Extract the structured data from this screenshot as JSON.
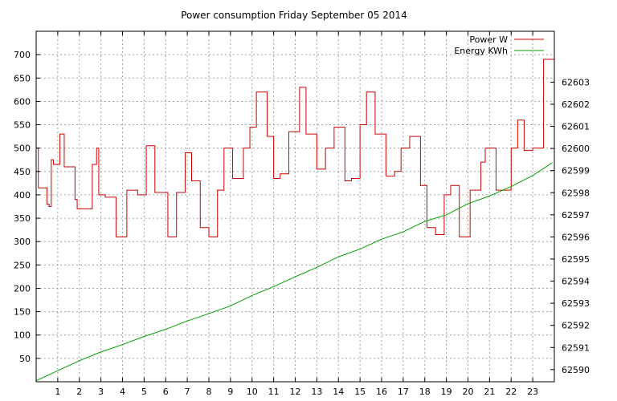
{
  "chart_data": {
    "type": "line",
    "title": "Power consumption Friday September 05 2014",
    "xlabel": "",
    "ylabel": "",
    "x_ticks": [
      1,
      2,
      3,
      4,
      5,
      6,
      7,
      8,
      9,
      10,
      11,
      12,
      13,
      14,
      15,
      16,
      17,
      18,
      19,
      20,
      21,
      22,
      23
    ],
    "xlim": [
      0,
      24
    ],
    "ylim": [
      0,
      750
    ],
    "y_ticks": [
      50,
      100,
      150,
      200,
      250,
      300,
      350,
      400,
      450,
      500,
      550,
      600,
      650,
      700
    ],
    "y2lim": [
      62589.45,
      62605.3
    ],
    "y2_ticks": [
      62590,
      62591,
      62592,
      62593,
      62594,
      62595,
      62596,
      62597,
      62598,
      62599,
      62600,
      62601,
      62602,
      62603
    ],
    "grid": true,
    "legend_position": "top-right",
    "series": [
      {
        "name": "Power W",
        "axis": "left",
        "color": "#cc0000",
        "step": true,
        "x": [
          0,
          0.1,
          0.5,
          0.6,
          0.7,
          0.8,
          1.1,
          1.3,
          1.8,
          1.9,
          2.0,
          2.6,
          2.8,
          2.9,
          3.2,
          3.7,
          4.2,
          4.7,
          5.1,
          5.5,
          6.1,
          6.5,
          6.9,
          7.2,
          7.6,
          8.0,
          8.4,
          8.7,
          9.1,
          9.6,
          9.9,
          10.2,
          10.7,
          11.0,
          11.3,
          11.7,
          12.2,
          12.5,
          13.0,
          13.4,
          13.8,
          14.3,
          14.6,
          15.0,
          15.3,
          15.7,
          16.2,
          16.6,
          16.9,
          17.3,
          17.8,
          18.1,
          18.5,
          18.9,
          19.2,
          19.6,
          20.1,
          20.6,
          20.8,
          21.3,
          21.6,
          22.0,
          22.3,
          22.6,
          23.0,
          23.5,
          24.0
        ],
        "y": [
          500,
          415,
          380,
          375,
          475,
          465,
          530,
          460,
          390,
          370,
          370,
          465,
          500,
          400,
          395,
          310,
          410,
          400,
          505,
          405,
          310,
          405,
          490,
          430,
          330,
          310,
          410,
          500,
          435,
          500,
          545,
          620,
          525,
          435,
          445,
          535,
          630,
          530,
          455,
          500,
          545,
          430,
          435,
          550,
          620,
          530,
          440,
          450,
          500,
          525,
          420,
          330,
          315,
          400,
          420,
          310,
          410,
          470,
          500,
          410,
          410,
          500,
          560,
          495,
          500,
          690,
          690
        ]
      },
      {
        "name": "Energy KWh",
        "axis": "right",
        "color": "#00a000",
        "step": false,
        "x": [
          0,
          1,
          2,
          3,
          4,
          5,
          6,
          7,
          8,
          9,
          10,
          11,
          12,
          13,
          14,
          15,
          16,
          17,
          18,
          19,
          20,
          21,
          22,
          23,
          23.9
        ],
        "y": [
          62589.5,
          62589.95,
          62590.4,
          62590.8,
          62591.13,
          62591.5,
          62591.82,
          62592.2,
          62592.53,
          62592.88,
          62593.35,
          62593.75,
          62594.2,
          62594.62,
          62595.1,
          62595.45,
          62595.9,
          62596.23,
          62596.7,
          62597.0,
          62597.5,
          62597.85,
          62598.28,
          62598.78,
          62599.35
        ]
      }
    ]
  }
}
